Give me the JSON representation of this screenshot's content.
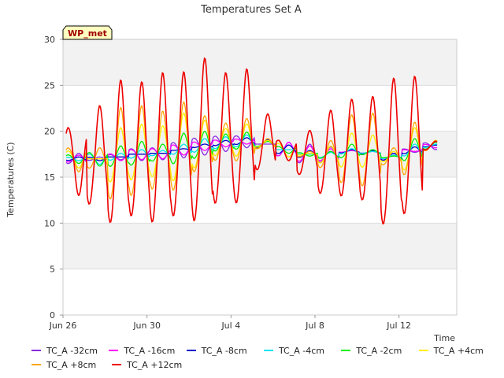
{
  "chart_data": {
    "type": "line",
    "title": "Temperatures Set A",
    "xlabel": "Time",
    "ylabel": "Temperatures (C)",
    "badge": "WP_met",
    "ylim": [
      0,
      30
    ],
    "yticks": [
      0,
      5,
      10,
      15,
      20,
      25,
      30
    ],
    "xlim": [
      "2024-06-26",
      "2024-07-14T18:00"
    ],
    "xticks": [
      {
        "label": "Jun 26",
        "date": "2024-06-26"
      },
      {
        "label": "Jun 30",
        "date": "2024-06-30"
      },
      {
        "label": "Jul 4",
        "date": "2024-07-04"
      },
      {
        "label": "Jul 8",
        "date": "2024-07-08"
      },
      {
        "label": "Jul 12",
        "date": "2024-07-12"
      }
    ],
    "grid": true,
    "legend_position": "bottom",
    "x": [
      "Jun 26",
      "Jun 27",
      "Jun 28",
      "Jun 29",
      "Jun 30",
      "Jul 1",
      "Jul 2",
      "Jul 3",
      "Jul 4",
      "Jul 5",
      "Jul 6",
      "Jul 7",
      "Jul 8",
      "Jul 9",
      "Jul 10",
      "Jul 11",
      "Jul 12",
      "Jul 13"
    ],
    "series": [
      {
        "name": "TC_A -32cm",
        "color": "#8a2be2",
        "values": [
          17.6,
          17.2,
          16.9,
          16.8,
          16.9,
          17.1,
          17.4,
          17.8,
          18.2,
          18.6,
          18.8,
          18.6,
          18.3,
          18.0,
          17.8,
          17.6,
          17.7,
          18.0
        ]
      },
      {
        "name": "TC_A -16cm",
        "color": "#ff00ff",
        "values": [
          17.4,
          17.0,
          16.8,
          16.9,
          17.0,
          17.4,
          17.9,
          18.3,
          18.6,
          18.9,
          18.8,
          18.4,
          18.1,
          17.9,
          17.8,
          17.6,
          17.8,
          18.2
        ]
      },
      {
        "name": "TC_A -8cm",
        "color": "#0000cd",
        "values": [
          17.2,
          16.8,
          17.2,
          17.5,
          17.6,
          18.1,
          18.6,
          19.0,
          19.3,
          19.1,
          18.5,
          17.9,
          17.8,
          18.0,
          17.9,
          17.6,
          18.3,
          18.5
        ]
      },
      {
        "name": "TC_A -4cm",
        "color": "#00e5ee",
        "values": [
          16.8,
          16.4,
          17.6,
          18.0,
          17.9,
          18.6,
          19.2,
          19.4,
          19.6,
          19.0,
          18.0,
          17.5,
          17.7,
          18.1,
          17.8,
          17.4,
          18.6,
          18.6
        ]
      },
      {
        "name": "TC_A -2cm",
        "color": "#00ee00",
        "values": [
          16.5,
          16.2,
          18.4,
          18.9,
          18.6,
          19.8,
          20.0,
          19.7,
          19.9,
          18.9,
          17.6,
          17.3,
          17.8,
          18.6,
          18.0,
          17.3,
          19.2,
          18.8
        ]
      },
      {
        "name": "TC_A +4cm",
        "color": "#ffee00",
        "values": [
          16.0,
          17.0,
          20.4,
          20.8,
          20.6,
          22.0,
          21.2,
          20.3,
          20.8,
          19.0,
          17.2,
          17.6,
          18.4,
          19.8,
          19.6,
          17.8,
          20.4,
          19.0
        ]
      },
      {
        "name": "TC_A +8cm",
        "color": "#ffa500",
        "values": [
          15.6,
          18.2,
          22.6,
          22.8,
          22.2,
          23.2,
          21.7,
          20.9,
          21.4,
          19.2,
          16.8,
          17.8,
          19.0,
          21.8,
          22.0,
          18.2,
          21.0,
          19.0
        ]
      },
      {
        "name": "TC_A +12cm",
        "color": "#ee0000",
        "values": [
          13.0,
          22.8,
          25.6,
          25.4,
          26.4,
          26.5,
          28.0,
          26.4,
          26.8,
          21.9,
          16.8,
          20.1,
          22.3,
          23.5,
          23.8,
          25.8,
          26.0,
          18.9
        ]
      }
    ]
  }
}
